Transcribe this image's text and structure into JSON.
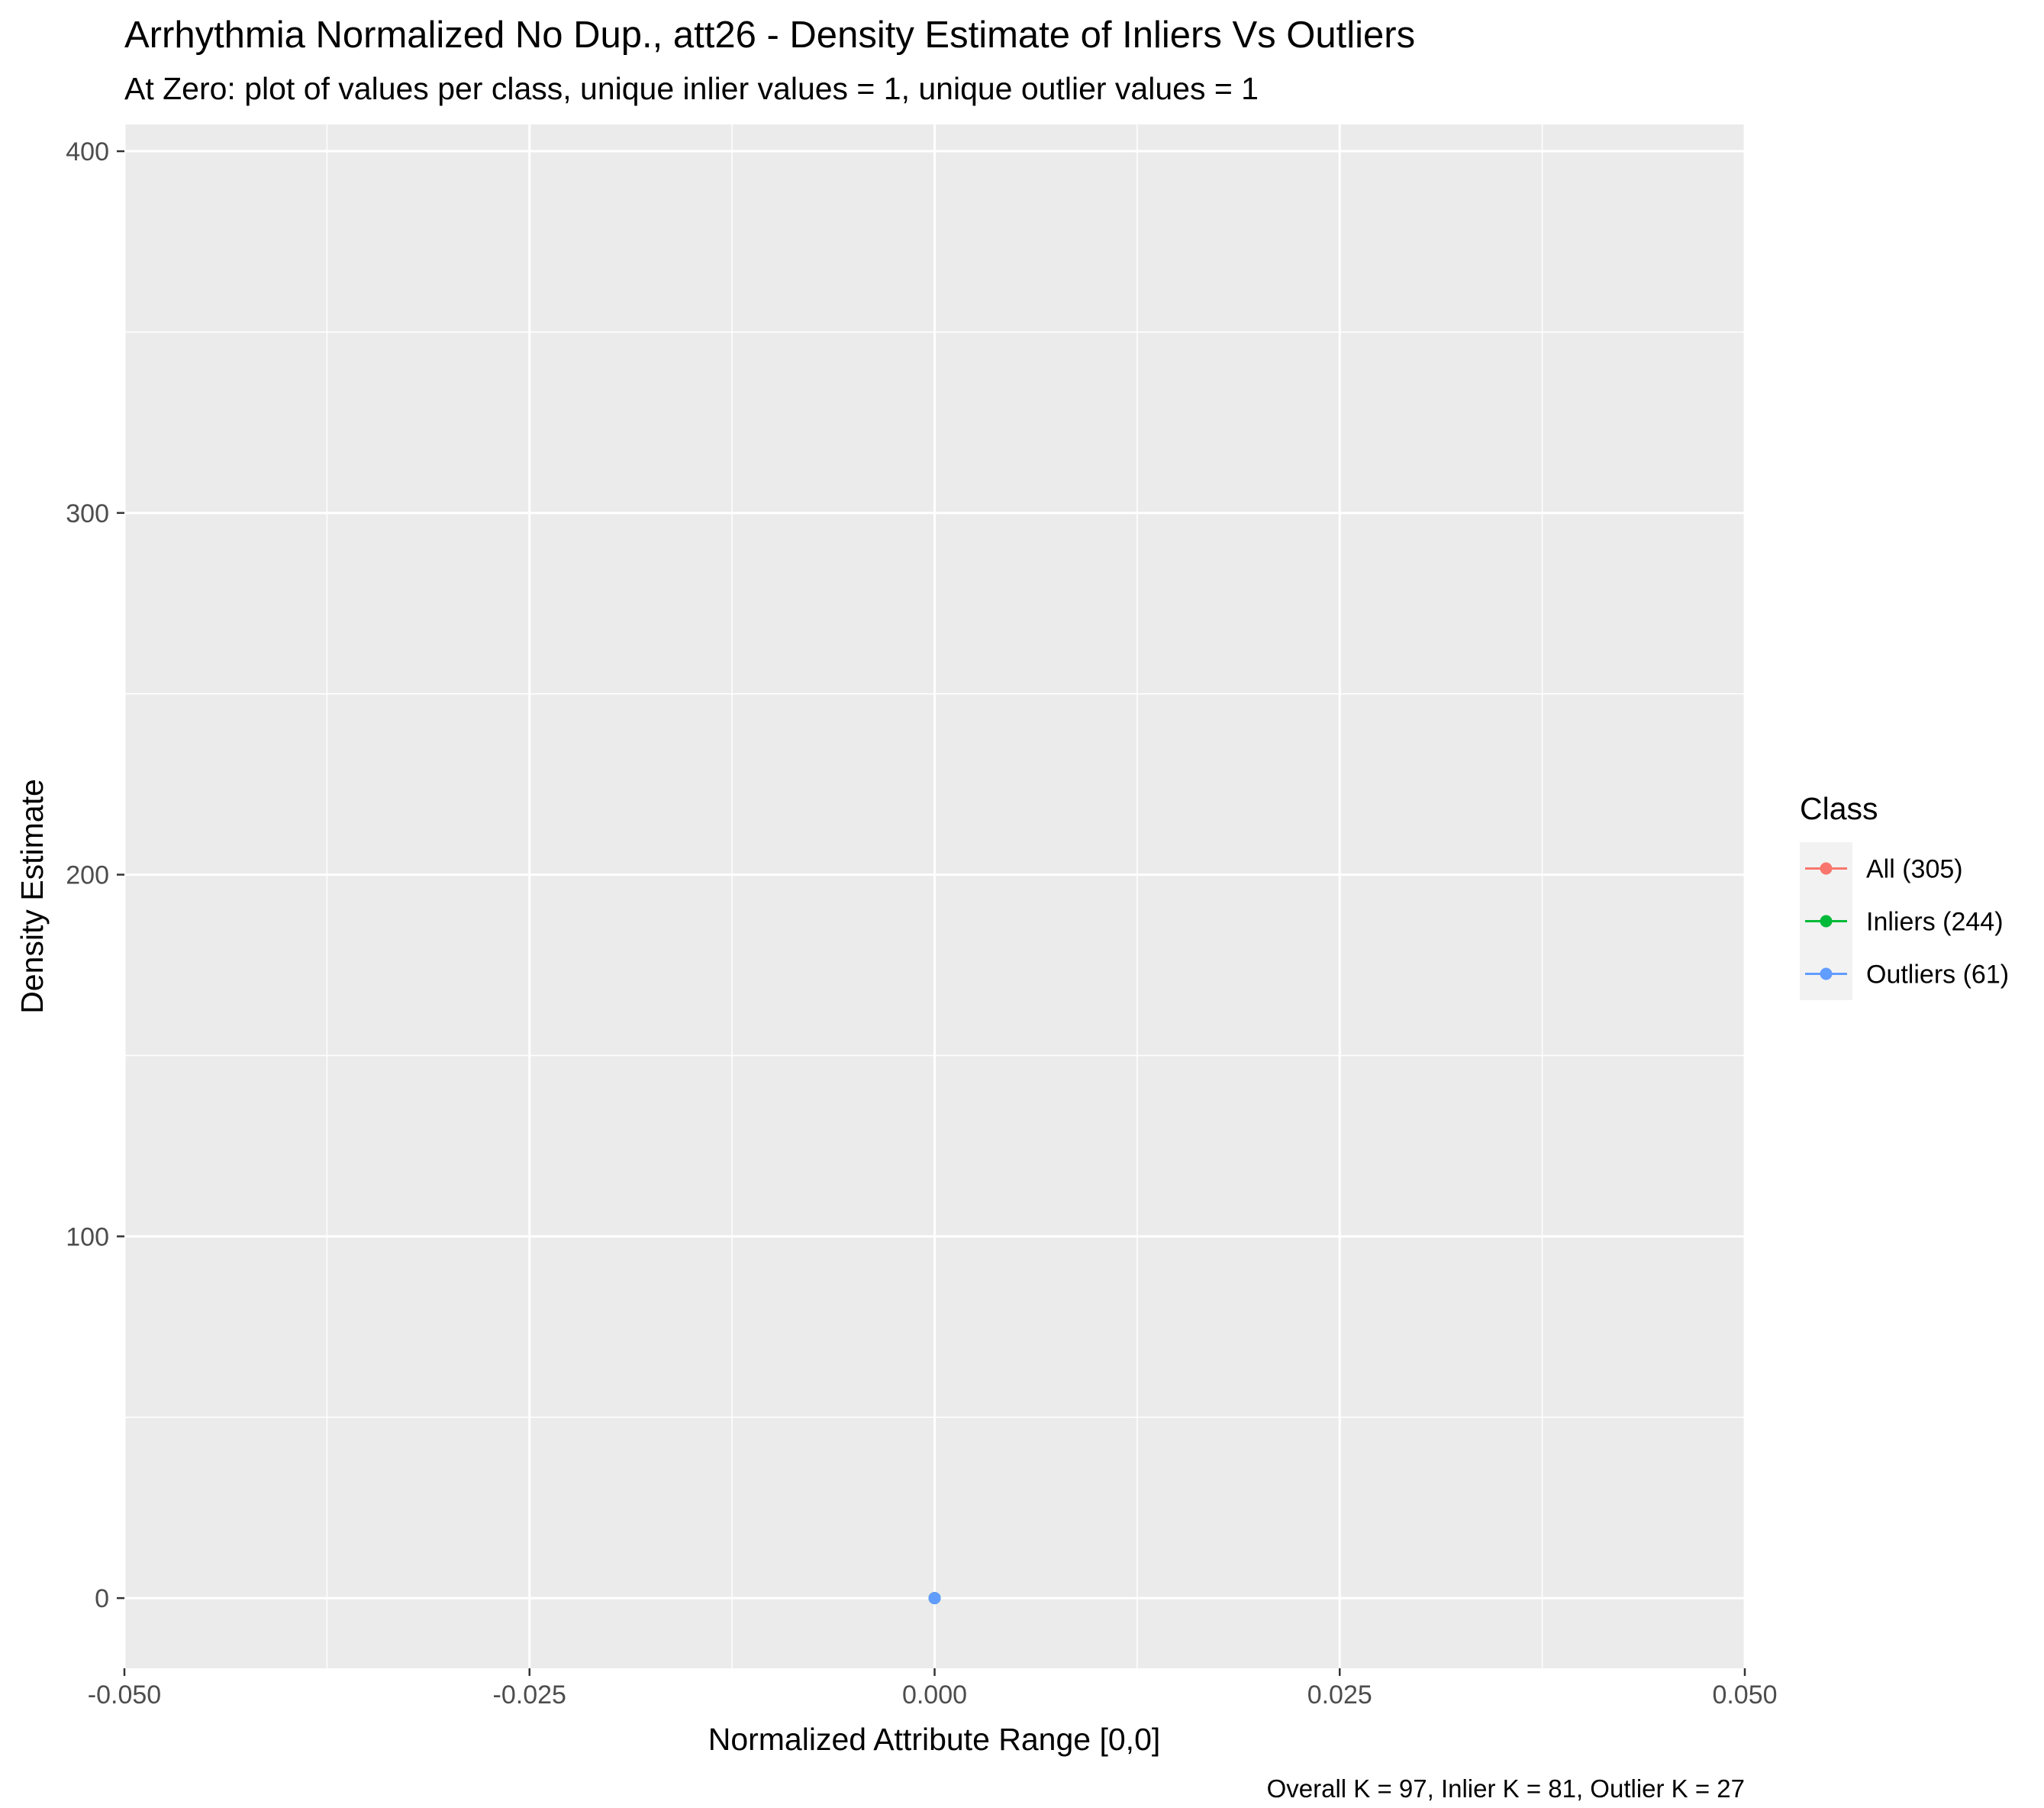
{
  "chart_data": {
    "type": "line",
    "title": "Arrhythmia Normalized No Dup., att26 - Density Estimate of Inliers Vs Outliers",
    "subtitle": "At Zero: plot of values per class, unique inlier values = 1, unique outlier values = 1",
    "xlabel": "Normalized Attribute Range [0,0]",
    "ylabel": "Density Estimate",
    "caption": "Overall K = 97, Inlier K = 81, Outlier K = 27",
    "xlim": [
      -0.05,
      0.05
    ],
    "ylim": [
      -19.4,
      407.4
    ],
    "x_ticks": [
      -0.05,
      -0.025,
      0.0,
      0.025,
      0.05
    ],
    "x_tick_labels": [
      "-0.050",
      "-0.025",
      "0.000",
      "0.025",
      "0.050"
    ],
    "y_ticks": [
      0,
      100,
      200,
      300,
      400
    ],
    "y_tick_labels": [
      "0",
      "100",
      "200",
      "300",
      "400"
    ],
    "grid": true,
    "legend": {
      "title": "Class",
      "position": "right",
      "entries": [
        "All (305)",
        "Inliers (244)",
        "Outliers (61)"
      ]
    },
    "series": [
      {
        "name": "All (305)",
        "color": "#F8766D",
        "points": [
          {
            "x": 0.0,
            "y": 0
          }
        ]
      },
      {
        "name": "Inliers (244)",
        "color": "#00BA38",
        "points": [
          {
            "x": 0.0,
            "y": 0
          }
        ]
      },
      {
        "name": "Outliers (61)",
        "color": "#619CFF",
        "points": [
          {
            "x": 0.0,
            "y": 0
          }
        ]
      }
    ]
  }
}
